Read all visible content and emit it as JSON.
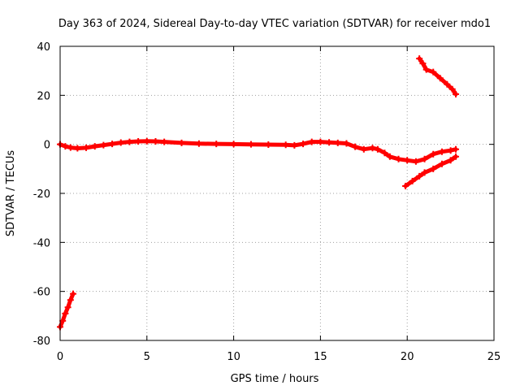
{
  "chart_data": {
    "type": "scatter",
    "title": "Day 363 of 2024, Sidereal Day-to-day VTEC variation (SDTVAR) for receiver mdo1",
    "xlabel": "GPS time / hours",
    "ylabel": "SDTVAR / TECUs",
    "xlim": [
      0,
      25
    ],
    "ylim": [
      -80,
      40
    ],
    "xticks": [
      0,
      5,
      10,
      15,
      20,
      25
    ],
    "yticks": [
      -80,
      -60,
      -40,
      -20,
      0,
      20,
      40
    ],
    "grid": true,
    "colors": {
      "series": "#ff0000"
    },
    "series": [
      {
        "name": "early-segment",
        "points": [
          [
            0.0,
            -74.5
          ],
          [
            0.15,
            -72
          ],
          [
            0.3,
            -69
          ],
          [
            0.45,
            -66.5
          ],
          [
            0.6,
            -63.5
          ],
          [
            0.75,
            -61
          ]
        ]
      },
      {
        "name": "main-trace",
        "points": [
          [
            0.0,
            0.0
          ],
          [
            0.3,
            -0.8
          ],
          [
            0.6,
            -1.3
          ],
          [
            1.0,
            -1.6
          ],
          [
            1.5,
            -1.4
          ],
          [
            2.0,
            -0.8
          ],
          [
            2.5,
            -0.3
          ],
          [
            3.0,
            0.2
          ],
          [
            3.5,
            0.7
          ],
          [
            4.0,
            1.0
          ],
          [
            4.5,
            1.2
          ],
          [
            5.0,
            1.3
          ],
          [
            5.5,
            1.2
          ],
          [
            6.0,
            1.0
          ],
          [
            7.0,
            0.6
          ],
          [
            8.0,
            0.3
          ],
          [
            9.0,
            0.2
          ],
          [
            10.0,
            0.1
          ],
          [
            11.0,
            0.0
          ],
          [
            12.0,
            -0.1
          ],
          [
            13.0,
            -0.2
          ],
          [
            13.5,
            -0.4
          ],
          [
            14.0,
            0.2
          ],
          [
            14.5,
            1.0
          ],
          [
            15.0,
            1.0
          ],
          [
            15.5,
            0.8
          ],
          [
            16.0,
            0.6
          ],
          [
            16.5,
            0.4
          ],
          [
            17.0,
            -1.0
          ],
          [
            17.5,
            -2.0
          ],
          [
            18.0,
            -1.5
          ],
          [
            18.3,
            -2.0
          ],
          [
            18.7,
            -3.5
          ],
          [
            19.0,
            -5.0
          ],
          [
            19.5,
            -6.0
          ],
          [
            20.0,
            -6.5
          ],
          [
            20.5,
            -7.0
          ],
          [
            21.0,
            -6.0
          ],
          [
            21.5,
            -4.0
          ],
          [
            22.0,
            -3.0
          ],
          [
            22.5,
            -2.5
          ],
          [
            22.8,
            -2.0
          ]
        ]
      },
      {
        "name": "lower-branch",
        "points": [
          [
            19.9,
            -17
          ],
          [
            20.3,
            -15
          ],
          [
            20.7,
            -13
          ],
          [
            21.0,
            -11.5
          ],
          [
            21.5,
            -10
          ],
          [
            22.0,
            -8
          ],
          [
            22.5,
            -6.5
          ],
          [
            22.8,
            -5
          ]
        ]
      },
      {
        "name": "upper-branch",
        "points": [
          [
            20.7,
            35
          ],
          [
            20.9,
            33
          ],
          [
            21.1,
            30.5
          ],
          [
            21.5,
            29.5
          ],
          [
            21.9,
            27
          ],
          [
            22.3,
            24.5
          ],
          [
            22.6,
            22.5
          ],
          [
            22.8,
            20.5
          ]
        ]
      }
    ]
  }
}
